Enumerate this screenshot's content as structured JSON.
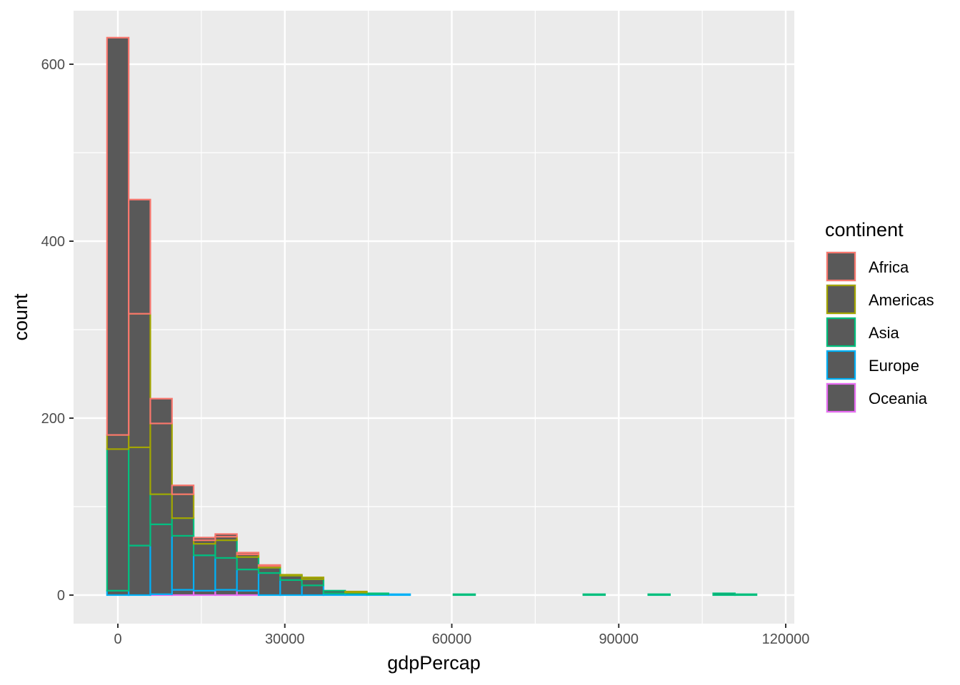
{
  "chart_data": {
    "type": "bar",
    "stacked": true,
    "xlabel": "gdpPercap",
    "ylabel": "count",
    "xlim": [
      -5000,
      120000
    ],
    "ylim": [
      -30,
      660
    ],
    "x_ticks": [
      0,
      30000,
      60000,
      90000,
      120000
    ],
    "y_ticks": [
      0,
      200,
      400,
      600
    ],
    "x_tick_labels": [
      "0",
      "30000",
      "60000",
      "90000",
      "120000"
    ],
    "y_tick_labels": [
      "0",
      "200",
      "400",
      "600"
    ],
    "grid": true,
    "bar_fill": "#595959",
    "background": "#ebebeb",
    "bin_centers": [
      0,
      3890,
      7780,
      11670,
      15560,
      19450,
      23340,
      27230,
      31120,
      35010,
      38900,
      42790,
      46680,
      50570,
      54460,
      58350,
      62240,
      66130,
      70020,
      73910,
      77800,
      81690,
      85580,
      89470,
      93360,
      97250,
      101140,
      105030,
      108920,
      112810
    ],
    "bin_width": 3890,
    "legend": {
      "title": "continent",
      "position": "right"
    },
    "series": [
      {
        "name": "Oceania",
        "color": "#e76bf3",
        "values": [
          0,
          0,
          1,
          6,
          5,
          6,
          5,
          0,
          0,
          0,
          0,
          0,
          0,
          0,
          0,
          0,
          0,
          0,
          0,
          0,
          0,
          0,
          0,
          0,
          0,
          0,
          0,
          0,
          0,
          0
        ]
      },
      {
        "name": "Europe",
        "color": "#00b0f6",
        "values": [
          5,
          56,
          79,
          61,
          40,
          36,
          24,
          25,
          17,
          11,
          2,
          2,
          1,
          1,
          0,
          0,
          0,
          0,
          0,
          0,
          0,
          0,
          0,
          0,
          0,
          0,
          0,
          0,
          0,
          0
        ]
      },
      {
        "name": "Asia",
        "color": "#00bf7d",
        "values": [
          160,
          111,
          34,
          20,
          13,
          20,
          14,
          6,
          5,
          7,
          3,
          1,
          1,
          0,
          0,
          0,
          1,
          0,
          0,
          0,
          0,
          0,
          1,
          0,
          0,
          1,
          0,
          0,
          2,
          1
        ]
      },
      {
        "name": "Americas",
        "color": "#a3a500",
        "values": [
          16,
          151,
          80,
          27,
          4,
          4,
          3,
          2,
          1,
          2,
          0,
          1,
          0,
          0,
          0,
          0,
          0,
          0,
          0,
          0,
          0,
          0,
          0,
          0,
          0,
          0,
          0,
          0,
          0,
          0
        ]
      },
      {
        "name": "Africa",
        "color": "#f8766d",
        "values": [
          449,
          129,
          28,
          10,
          3,
          3,
          2,
          1,
          0,
          0,
          0,
          0,
          0,
          0,
          0,
          0,
          0,
          0,
          0,
          0,
          0,
          0,
          0,
          0,
          0,
          0,
          0,
          0,
          0,
          0
        ]
      }
    ],
    "legend_order": [
      "Africa",
      "Americas",
      "Asia",
      "Europe",
      "Oceania"
    ]
  }
}
